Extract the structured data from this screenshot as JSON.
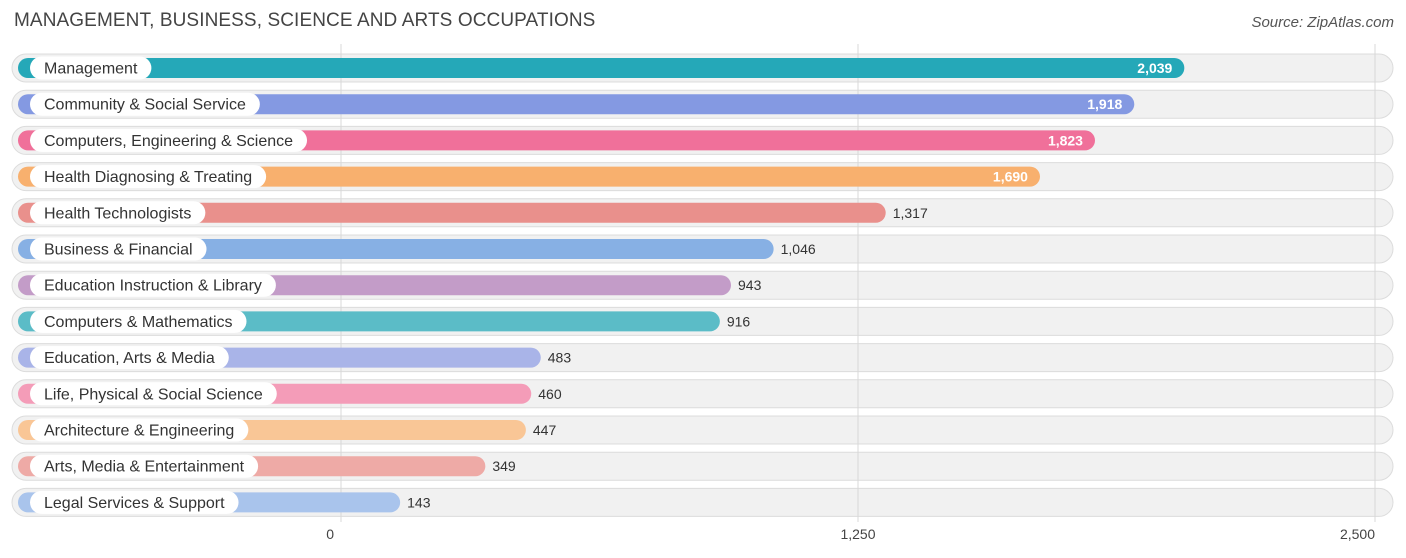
{
  "header": {
    "title": "MANAGEMENT, BUSINESS, SCIENCE AND ARTS OCCUPATIONS",
    "source": "Source: ZipAtlas.com"
  },
  "chart_data": {
    "type": "bar",
    "orientation": "horizontal",
    "title": "MANAGEMENT, BUSINESS, SCIENCE AND ARTS OCCUPATIONS",
    "xlim": [
      0,
      2500
    ],
    "xticks": [
      0,
      1250,
      2500
    ],
    "xtick_labels": [
      "0",
      "1,250",
      "2,500"
    ],
    "grid": true,
    "categories": [
      "Management",
      "Community & Social Service",
      "Computers, Engineering & Science",
      "Health Diagnosing & Treating",
      "Health Technologists",
      "Business & Financial",
      "Education Instruction & Library",
      "Computers & Mathematics",
      "Education, Arts & Media",
      "Life, Physical & Social Science",
      "Architecture & Engineering",
      "Arts, Media & Entertainment",
      "Legal Services & Support"
    ],
    "values": [
      2039,
      1918,
      1823,
      1690,
      1317,
      1046,
      943,
      916,
      483,
      460,
      447,
      349,
      143
    ],
    "value_labels": [
      "2,039",
      "1,918",
      "1,823",
      "1,690",
      "1,317",
      "1,046",
      "943",
      "916",
      "483",
      "460",
      "447",
      "349",
      "143"
    ],
    "colors": [
      "#25a8b8",
      "#8499e2",
      "#f0709a",
      "#f8b06e",
      "#e9908c",
      "#87b0e4",
      "#c39cc8",
      "#5bbcc7",
      "#a9b4e8",
      "#f49cb8",
      "#f9c696",
      "#eeaaa6",
      "#a9c4ec"
    ]
  }
}
